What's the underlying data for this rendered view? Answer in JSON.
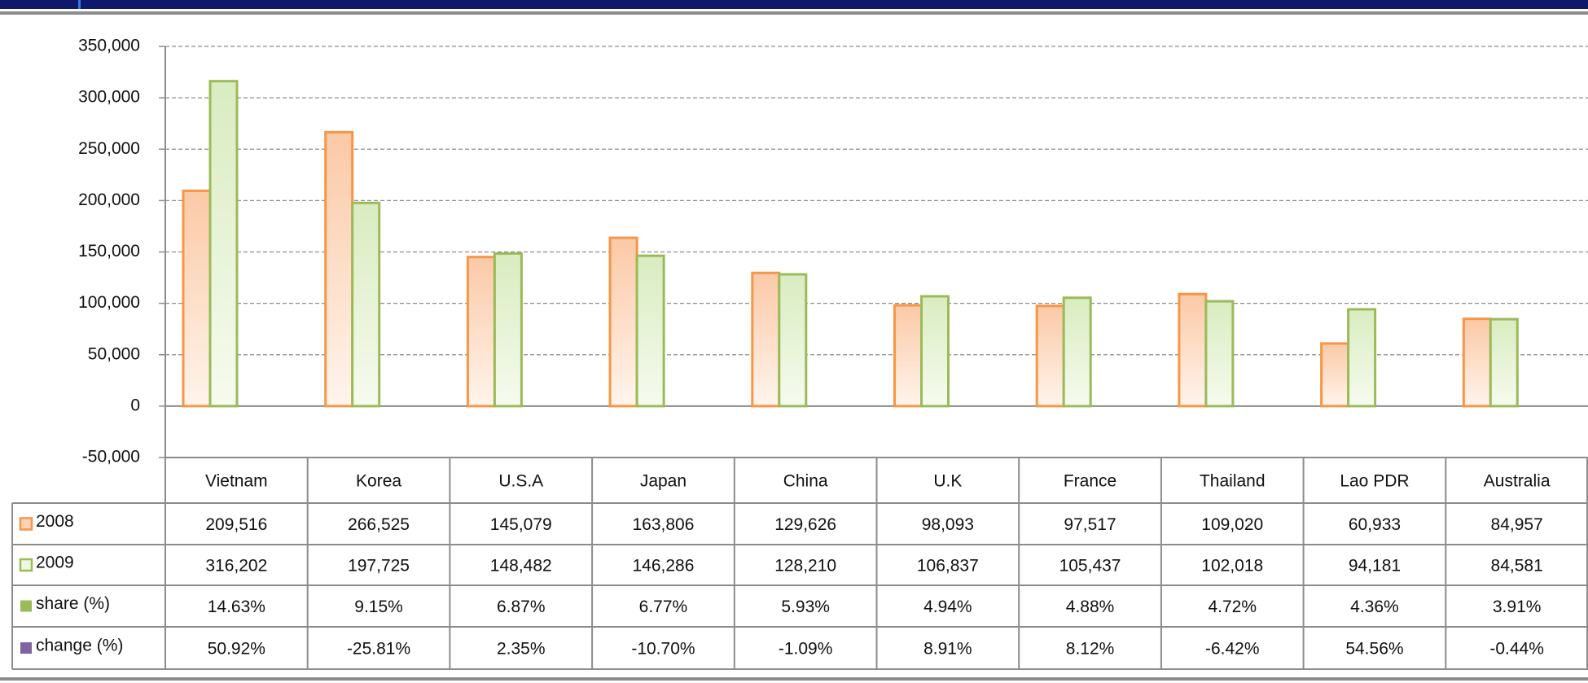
{
  "chart_data": {
    "type": "bar",
    "categories": [
      "Vietnam",
      "Korea",
      "U.S.A",
      "Japan",
      "China",
      "U.K",
      "France",
      "Thailand",
      "Lao PDR",
      "Australia"
    ],
    "series": [
      {
        "name": "2008",
        "color": "#f79646",
        "values": [
          209516,
          266525,
          145079,
          163806,
          129626,
          98093,
          97517,
          109020,
          60933,
          84957
        ],
        "value_labels": [
          "209,516",
          "266,525",
          "145,079",
          "163,806",
          "129,626",
          "98,093",
          "97,517",
          "109,020",
          "60,933",
          "84,957"
        ]
      },
      {
        "name": "2009",
        "color": "#9bbb59",
        "values": [
          316202,
          197725,
          148482,
          146286,
          128210,
          106837,
          105437,
          102018,
          94181,
          84581
        ],
        "value_labels": [
          "316,202",
          "197,725",
          "148,482",
          "146,286",
          "128,210",
          "106,837",
          "105,437",
          "102,018",
          "94,181",
          "84,581"
        ]
      },
      {
        "name": "share (%)",
        "color": "#9bbb59",
        "values": [
          14.63,
          9.15,
          6.87,
          6.77,
          5.93,
          4.94,
          4.88,
          4.72,
          4.36,
          3.91
        ],
        "value_labels": [
          "14.63%",
          "9.15%",
          "6.87%",
          "6.77%",
          "5.93%",
          "4.94%",
          "4.88%",
          "4.72%",
          "4.36%",
          "3.91%"
        ]
      },
      {
        "name": "change (%)",
        "color": "#8064a2",
        "values": [
          50.92,
          -25.81,
          2.35,
          -10.7,
          -1.09,
          8.91,
          8.12,
          -6.42,
          54.56,
          -0.44
        ],
        "value_labels": [
          "50.92%",
          "-25.81%",
          "2.35%",
          "-10.70%",
          "-1.09%",
          "8.91%",
          "8.12%",
          "-6.42%",
          "54.56%",
          "-0.44%"
        ]
      }
    ],
    "ylim": [
      -50000,
      350000
    ],
    "yticks": [
      {
        "value": -50000,
        "label": "-50,000"
      },
      0,
      {
        "value": 50000,
        "label": "50,000"
      },
      {
        "value": 100000,
        "label": "100,000"
      },
      {
        "value": 150000,
        "label": "150,000"
      },
      {
        "value": 200000,
        "label": "200,000"
      },
      {
        "value": 250000,
        "label": "250,000"
      },
      {
        "value": 300000,
        "label": "300,000"
      },
      {
        "value": 350000,
        "label": "350,000"
      }
    ],
    "grid": true
  }
}
